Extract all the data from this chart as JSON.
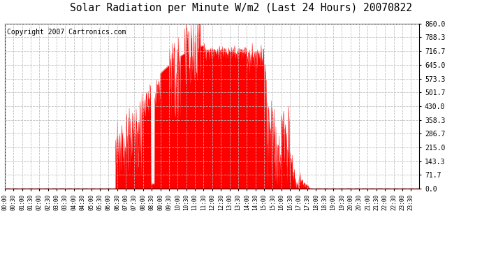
{
  "title": "Solar Radiation per Minute W/m2 (Last 24 Hours) 20070822",
  "copyright": "Copyright 2007 Cartronics.com",
  "ylim": [
    0.0,
    860.0
  ],
  "yticks": [
    0.0,
    71.7,
    143.3,
    215.0,
    286.7,
    358.3,
    430.0,
    501.7,
    573.3,
    645.0,
    716.7,
    788.3,
    860.0
  ],
  "fill_color": "#ff0000",
  "line_color": "#ff0000",
  "background_color": "#ffffff",
  "plot_bg_color": "#ffffff",
  "grid_color": "#bbbbbb",
  "dashed_line_color": "#ff0000",
  "title_fontsize": 11,
  "copyright_fontsize": 7
}
